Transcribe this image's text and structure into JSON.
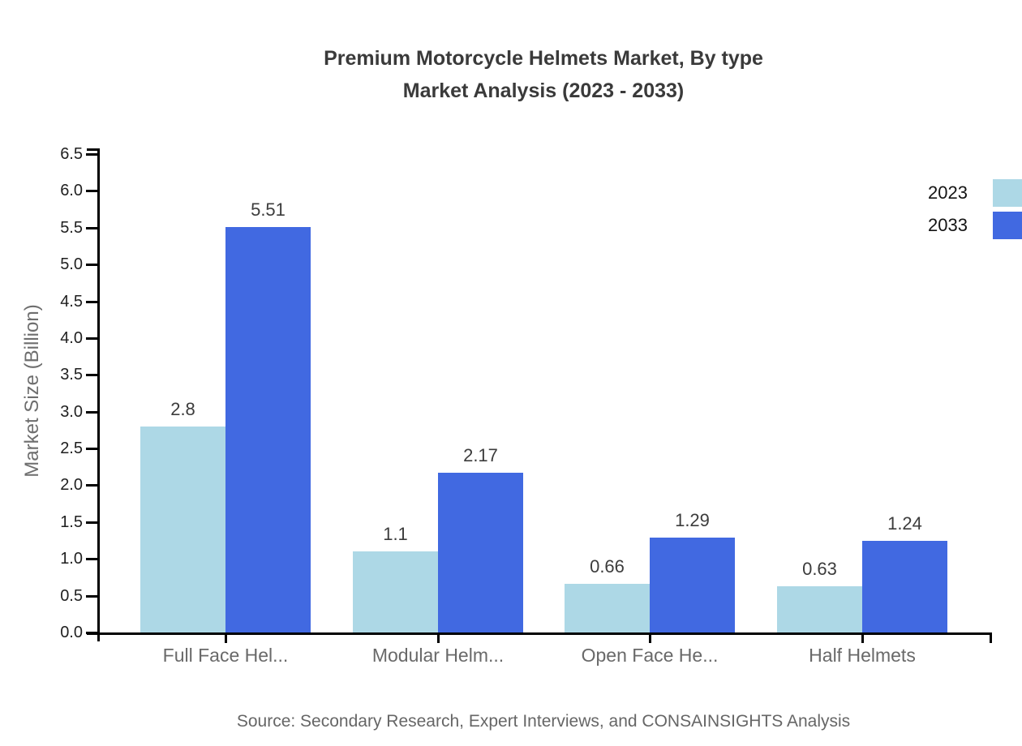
{
  "chart": {
    "title_line1": "Premium Motorcycle Helmets Market, By type",
    "title_line2": "Market Analysis (2023 - 2033)",
    "ylabel": "Market Size (Billion)",
    "source": "Source: Secondary Research, Expert Interviews, and CONSAINSIGHTS Analysis"
  },
  "chart_data": {
    "type": "bar",
    "title": "Premium Motorcycle Helmets Market, By type Market Analysis (2023 - 2033)",
    "categories": [
      "Full Face Hel...",
      "Modular Helm...",
      "Open Face He...",
      "Half Helmets"
    ],
    "series": [
      {
        "name": "2023",
        "color": "#add8e6",
        "values": [
          2.8,
          1.1,
          0.66,
          0.63
        ],
        "value_labels": [
          "2.8",
          "1.1",
          "0.66",
          "0.63"
        ]
      },
      {
        "name": "2033",
        "color": "#4169e1",
        "values": [
          5.51,
          2.17,
          1.29,
          1.24
        ],
        "value_labels": [
          "5.51",
          "2.17",
          "1.29",
          "1.24"
        ]
      }
    ],
    "xlabel": "",
    "ylabel": "Market Size (Billion)",
    "ylim": [
      0,
      6.5
    ],
    "ytick_step": 0.5,
    "ytick_labels": [
      "0.0",
      "0.5",
      "1.0",
      "1.5",
      "2.0",
      "2.5",
      "3.0",
      "3.5",
      "4.0",
      "4.5",
      "5.0",
      "5.5",
      "6.0",
      "6.5"
    ],
    "grid": false,
    "legend_position": "top-right",
    "axis_color": "#000000"
  }
}
